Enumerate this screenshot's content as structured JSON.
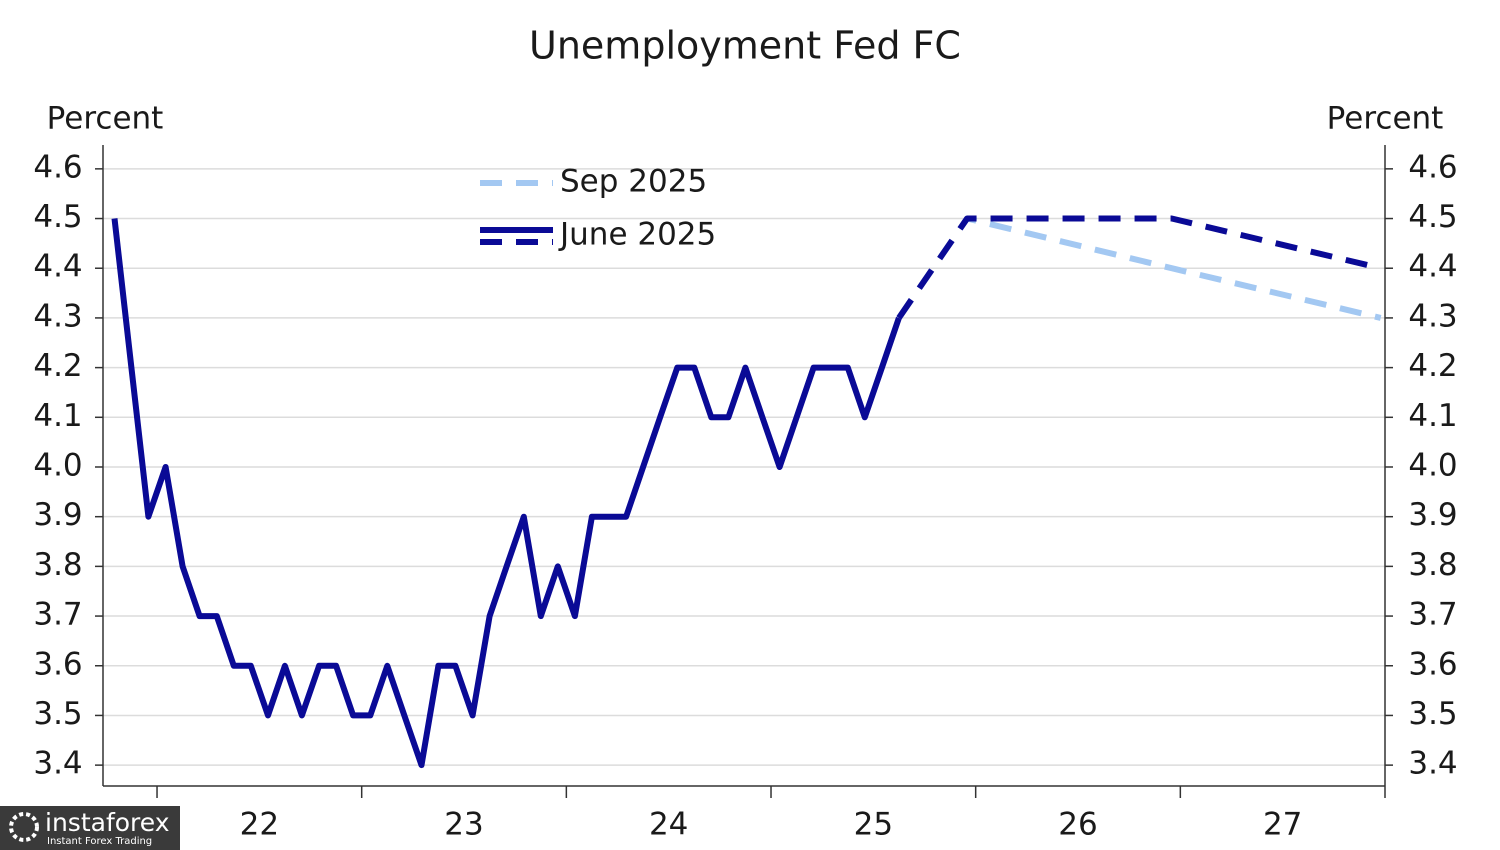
{
  "chart_data": {
    "type": "line",
    "title": "Unemployment Fed FC",
    "y_label": "Percent",
    "y2_label": "Percent",
    "xlim": [
      21.736,
      28.0
    ],
    "xticks": [
      {
        "value": 22.5,
        "label": "22"
      },
      {
        "value": 23.5,
        "label": "23"
      },
      {
        "value": 24.5,
        "label": "24"
      },
      {
        "value": 25.5,
        "label": "25"
      },
      {
        "value": 26.5,
        "label": "26"
      },
      {
        "value": 27.5,
        "label": "27"
      }
    ],
    "ylim": [
      3.358,
      4.648
    ],
    "yticks": [
      {
        "value": 3.4,
        "label": "3.4"
      },
      {
        "value": 3.5,
        "label": "3.5"
      },
      {
        "value": 3.6,
        "label": "3.6"
      },
      {
        "value": 3.7,
        "label": "3.7"
      },
      {
        "value": 3.8,
        "label": "3.8"
      },
      {
        "value": 3.9,
        "label": "3.9"
      },
      {
        "value": 4.0,
        "label": "4.0"
      },
      {
        "value": 4.1,
        "label": "4.1"
      },
      {
        "value": 4.2,
        "label": "4.2"
      },
      {
        "value": 4.3,
        "label": "4.3"
      },
      {
        "value": 4.4,
        "label": "4.4"
      },
      {
        "value": 4.5,
        "label": "4.5"
      },
      {
        "value": 4.6,
        "label": "4.6"
      }
    ],
    "y2lim": [
      3.358,
      4.648
    ],
    "y2ticks": [
      {
        "value": 3.4,
        "label": "3.4"
      },
      {
        "value": 3.5,
        "label": "3.5"
      },
      {
        "value": 3.6,
        "label": "3.6"
      },
      {
        "value": 3.7,
        "label": "3.7"
      },
      {
        "value": 3.8,
        "label": "3.8"
      },
      {
        "value": 3.9,
        "label": "3.9"
      },
      {
        "value": 4.0,
        "label": "4.0"
      },
      {
        "value": 4.1,
        "label": "4.1"
      },
      {
        "value": 4.2,
        "label": "4.2"
      },
      {
        "value": 4.3,
        "label": "4.3"
      },
      {
        "value": 4.4,
        "label": "4.4"
      },
      {
        "value": 4.5,
        "label": "4.5"
      },
      {
        "value": 4.6,
        "label": "4.6"
      }
    ],
    "grid": true,
    "series": [
      {
        "color": "#0a0a96",
        "dashed": false,
        "x": [
          21.792,
          21.875,
          21.958,
          22.042,
          22.125,
          22.208,
          22.292,
          22.375,
          22.458,
          22.542,
          22.625,
          22.708,
          22.792,
          22.875,
          22.958,
          23.042,
          23.125,
          23.208,
          23.292,
          23.375,
          23.458,
          23.542,
          23.625,
          23.708,
          23.792,
          23.875,
          23.958,
          24.042,
          24.125,
          24.208,
          24.292,
          24.375,
          24.458,
          24.542,
          24.625,
          24.708,
          24.792,
          24.875,
          24.958,
          25.042,
          25.125,
          25.208,
          25.292,
          25.375,
          25.458,
          25.542,
          25.625
        ],
        "values": [
          4.5,
          4.2,
          3.9,
          4.0,
          3.8,
          3.7,
          3.7,
          3.6,
          3.6,
          3.5,
          3.6,
          3.5,
          3.6,
          3.6,
          3.5,
          3.5,
          3.6,
          3.5,
          3.4,
          3.6,
          3.6,
          3.5,
          3.7,
          3.8,
          3.9,
          3.7,
          3.8,
          3.7,
          3.9,
          3.9,
          3.9,
          4.0,
          4.1,
          4.2,
          4.2,
          4.1,
          4.1,
          4.2,
          4.1,
          4.0,
          4.1,
          4.2,
          4.2,
          4.2,
          4.1,
          4.2,
          4.3
        ]
      },
      {
        "name": "Sep 2025",
        "color": "#a3c8f2",
        "dashed": true,
        "x": [
          25.625,
          25.958,
          26.958,
          27.979
        ],
        "values": [
          4.3,
          4.5,
          4.4,
          4.3
        ]
      },
      {
        "name": "June 2025",
        "color": "#0a0a96",
        "dashed": true,
        "x": [
          25.625,
          25.958,
          26.958,
          27.979
        ],
        "values": [
          4.3,
          4.5,
          4.5,
          4.4
        ]
      }
    ]
  },
  "watermark": {
    "brand": "instaforex",
    "tagline": "Instant Forex Trading"
  }
}
